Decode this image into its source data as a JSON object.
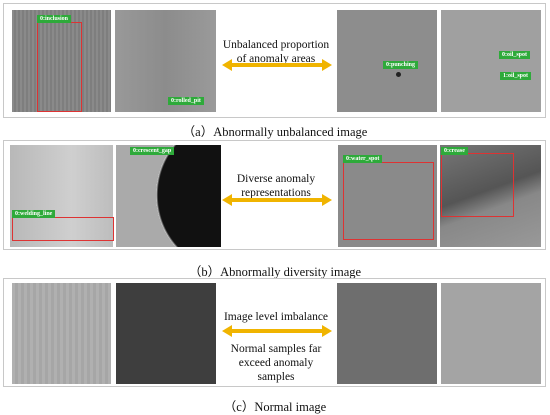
{
  "panels": [
    {
      "caption": "（a）Abnormally unbalanced image",
      "description": "Unbalanced proportion of anomaly areas",
      "labels": [
        "0:inclusion",
        "0:rolled_pit",
        "0:punching",
        "0:oil_spot",
        "1:oil_spot"
      ]
    },
    {
      "caption": "（b）Abnormally diversity image",
      "description": "Diverse anomaly representations",
      "labels": [
        "0:welding_line",
        "0:crescent_gap",
        "0:water_spot",
        "0:crease"
      ]
    },
    {
      "caption": "（c）Normal image",
      "description": "Image level imbalance",
      "description_2": "Normal samples far exceed anomaly samples"
    }
  ]
}
